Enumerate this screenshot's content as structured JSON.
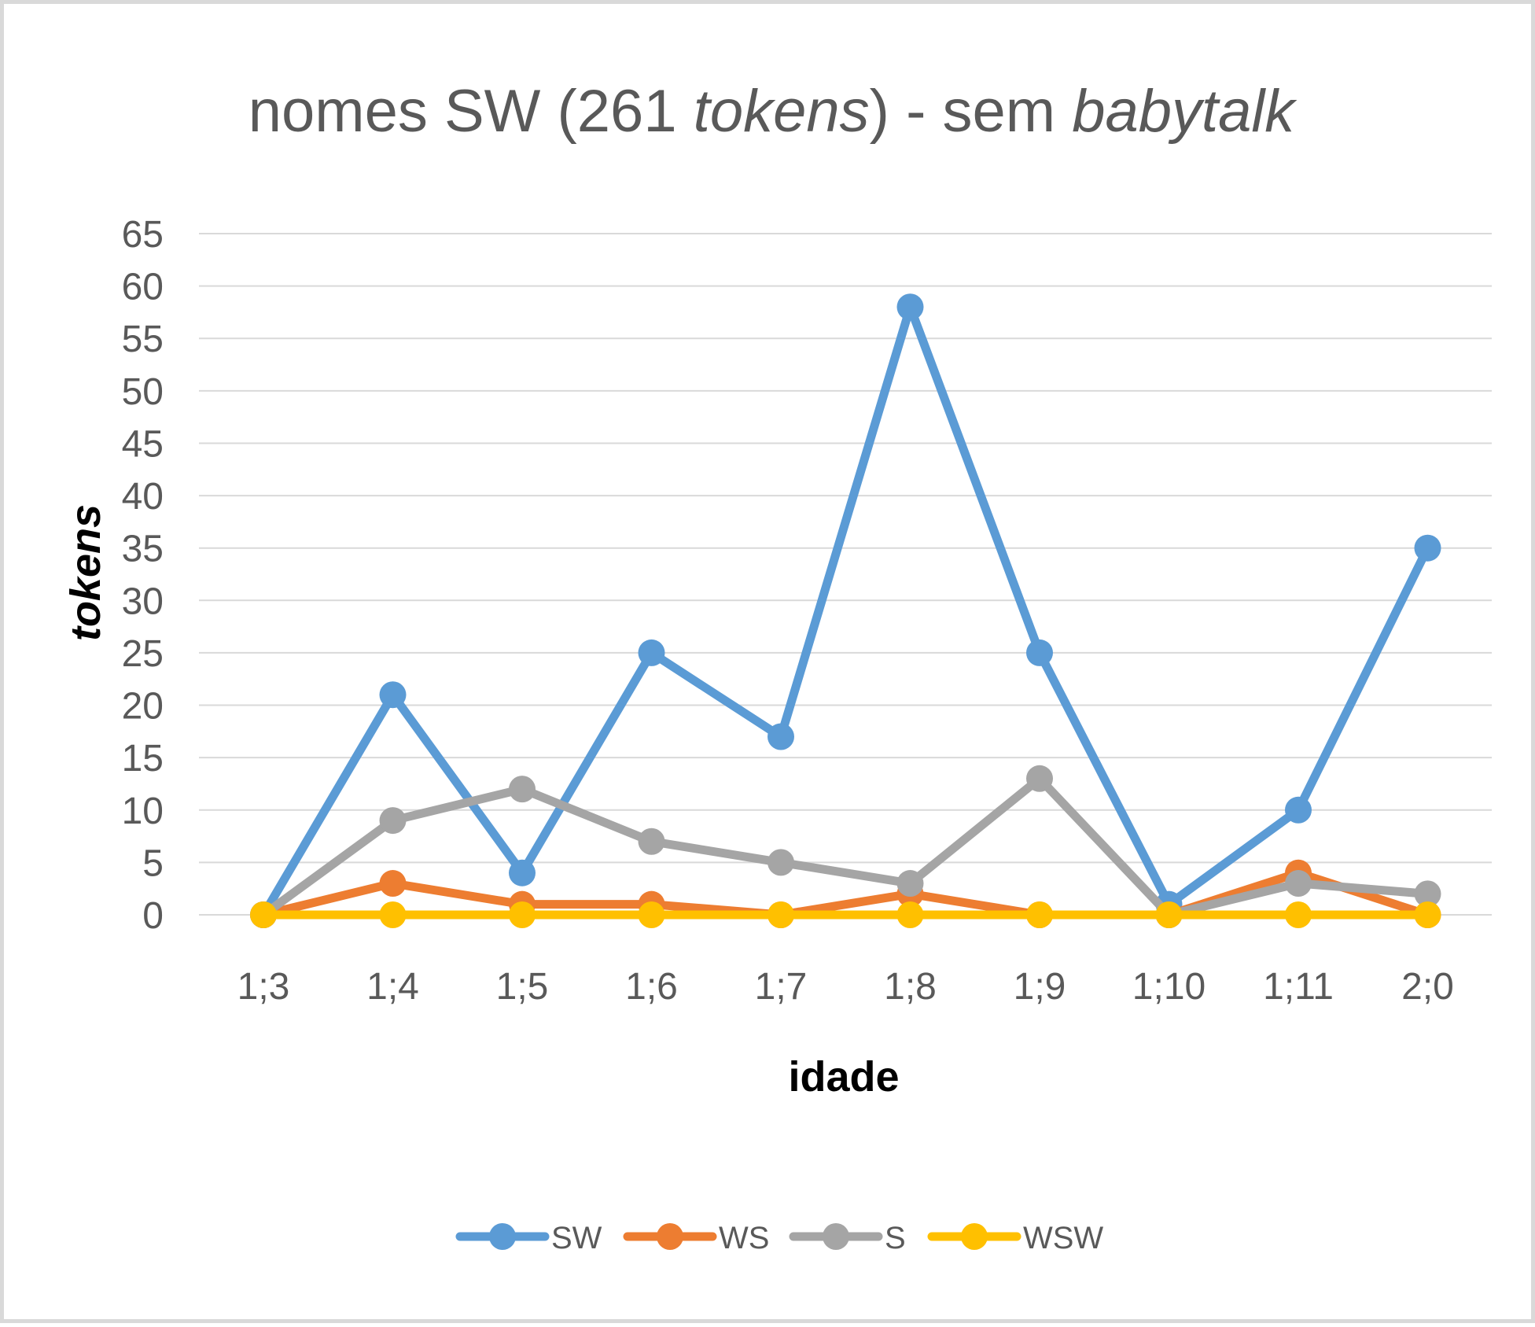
{
  "chart_data": {
    "type": "line",
    "title_parts": [
      {
        "text": "nomes SW (261 ",
        "italic": false
      },
      {
        "text": "tokens",
        "italic": true
      },
      {
        "text": ") - sem ",
        "italic": false
      },
      {
        "text": "babytalk",
        "italic": true
      }
    ],
    "xlabel": "idade",
    "ylabel": "tokens",
    "categories": [
      "1;3",
      "1;4",
      "1;5",
      "1;6",
      "1;7",
      "1;8",
      "1;9",
      "1;10",
      "1;11",
      "2;0"
    ],
    "ylim": [
      0,
      65
    ],
    "yticks": [
      0,
      5,
      10,
      15,
      20,
      25,
      30,
      35,
      40,
      45,
      50,
      55,
      60,
      65
    ],
    "grid": true,
    "legend_position": "bottom",
    "series": [
      {
        "name": "SW",
        "color": "#5b9bd5",
        "values": [
          0,
          21,
          4,
          25,
          17,
          58,
          25,
          1,
          10,
          35
        ]
      },
      {
        "name": "WS",
        "color": "#ed7d31",
        "values": [
          0,
          3,
          1,
          1,
          0,
          2,
          0,
          0,
          4,
          0
        ]
      },
      {
        "name": "S",
        "color": "#a5a5a5",
        "values": [
          0,
          9,
          12,
          7,
          5,
          3,
          13,
          0,
          3,
          2
        ]
      },
      {
        "name": "WSW",
        "color": "#ffc000",
        "values": [
          0,
          0,
          0,
          0,
          0,
          0,
          0,
          0,
          0,
          0
        ]
      }
    ]
  }
}
